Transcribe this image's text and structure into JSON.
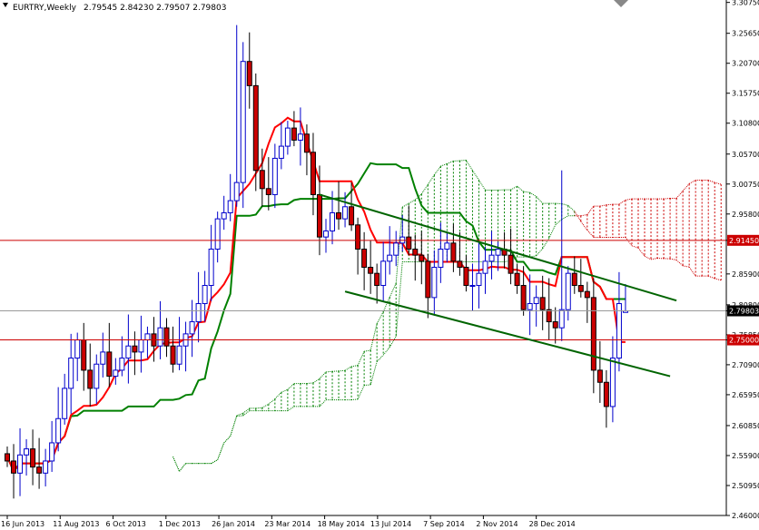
{
  "header": {
    "symbol": "EURTRY,Weekly",
    "ohlc": "2.79545 2.84230 2.79507 2.79803"
  },
  "colors": {
    "background": "#ffffff",
    "bull_candle": "#0000cc",
    "bear_candle": "#cc0000",
    "tenkan": "#ff0000",
    "kijun": "#008000",
    "trendline": "#006400",
    "hline": "#cc0000",
    "current_price": "#000000",
    "cloud_bull": "#008000",
    "cloud_bear": "#cc0000"
  },
  "chart_data": {
    "type": "candlestick",
    "title": "EURTRY,Weekly",
    "ylim": [
      2.46,
      3.307
    ],
    "y_ticks": [
      "3.30750",
      "3.25650",
      "3.20700",
      "3.15750",
      "3.10800",
      "3.05700",
      "3.00750",
      "2.95800",
      "2.91450",
      "2.85900",
      "2.80800",
      "2.79803",
      "2.75850",
      "2.75000",
      "2.70900",
      "2.65950",
      "2.60850",
      "2.55900",
      "2.50950",
      "2.46000"
    ],
    "x_ticks": [
      "16 Jun 2013",
      "11 Aug 2013",
      "6 Oct 2013",
      "1 Dec 2013",
      "26 Jan 2014",
      "23 Mar 2014",
      "18 May 2014",
      "13 Jul 2014",
      "7 Sep 2014",
      "2 Nov 2014",
      "28 Dec 2014"
    ],
    "current_price": "2.79803",
    "horizontal_lines": [
      "2.91450",
      "2.75000"
    ],
    "closes": [
      2.55,
      2.53,
      2.56,
      2.57,
      2.54,
      2.53,
      2.55,
      2.58,
      2.62,
      2.67,
      2.72,
      2.75,
      2.7,
      2.67,
      2.71,
      2.73,
      2.69,
      2.7,
      2.72,
      2.74,
      2.73,
      2.75,
      2.76,
      2.74,
      2.77,
      2.74,
      2.71,
      2.74,
      2.76,
      2.78,
      2.81,
      2.84,
      2.9,
      2.95,
      2.96,
      2.98,
      3.01,
      3.21,
      3.17,
      3.03,
      3.0,
      2.99,
      3.05,
      3.07,
      3.1,
      3.08,
      3.09,
      3.06,
      2.99,
      2.92,
      2.93,
      2.96,
      2.95,
      2.97,
      2.94,
      2.9,
      2.87,
      2.86,
      2.84,
      2.88,
      2.89,
      2.91,
      2.92,
      2.9,
      2.89,
      2.88,
      2.82,
      2.87,
      2.9,
      2.91,
      2.88,
      2.87,
      2.84,
      2.84,
      2.86,
      2.88,
      2.89,
      2.9,
      2.89,
      2.86,
      2.84,
      2.8,
      2.81,
      2.82,
      2.8,
      2.78,
      2.77,
      2.8,
      2.86,
      2.84,
      2.83,
      2.82,
      2.7,
      2.68,
      2.64,
      2.72,
      2.81,
      2.798
    ]
  }
}
